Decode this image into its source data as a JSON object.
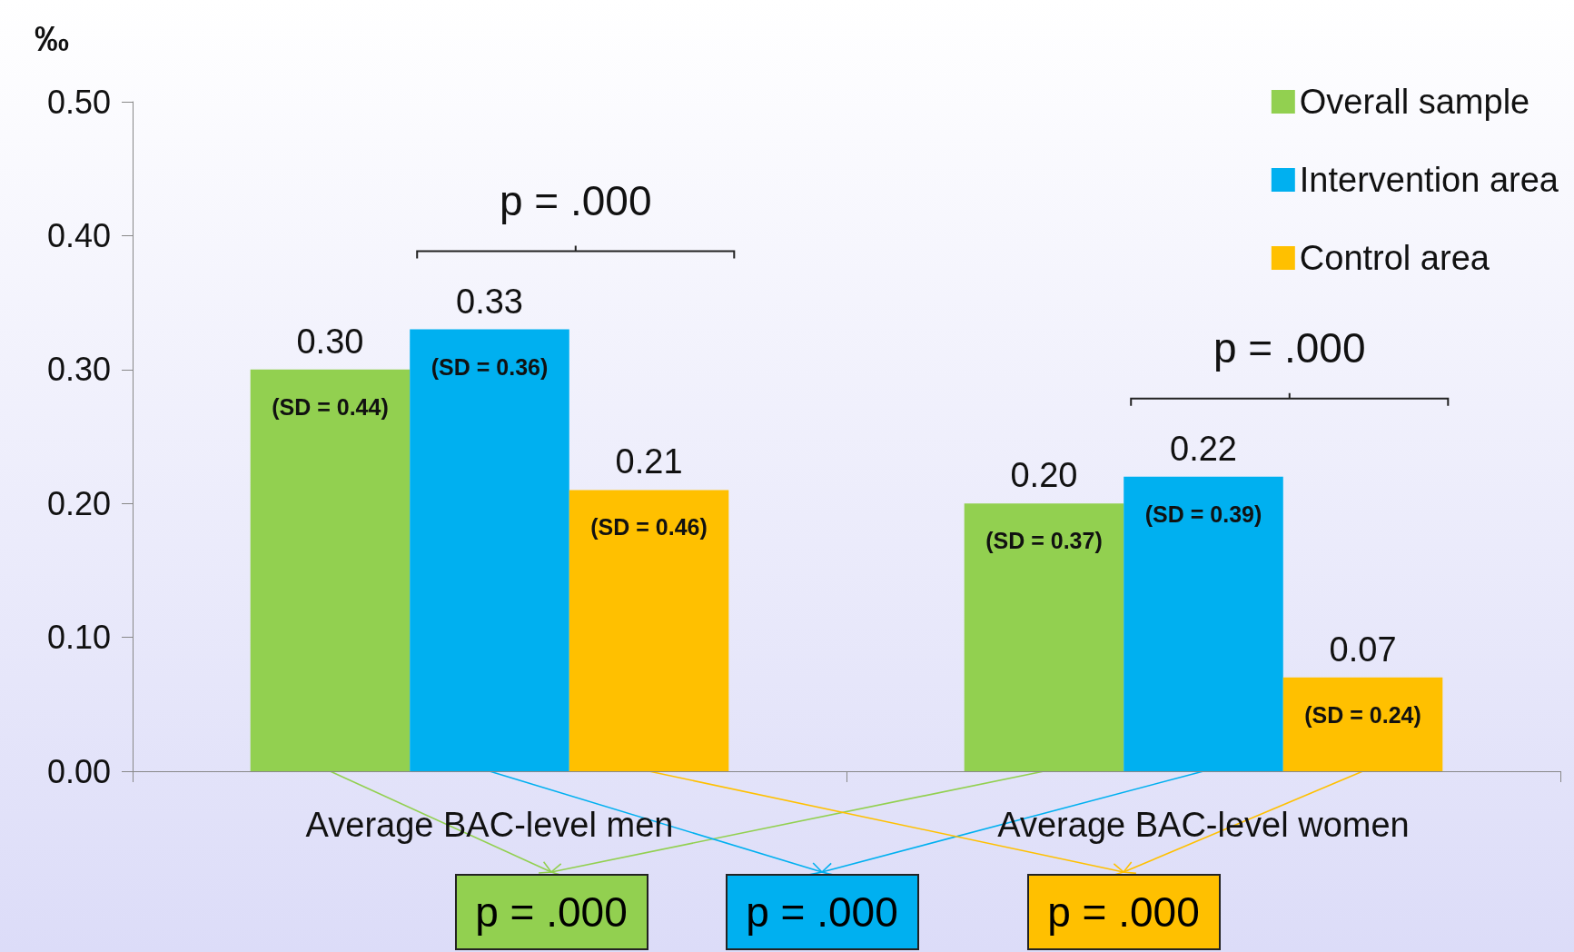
{
  "chart_data": {
    "type": "bar",
    "ylabel": "‰",
    "categories": [
      "Average BAC-level men",
      "Average BAC-level women"
    ],
    "series": [
      {
        "name": "Overall sample",
        "color": "#92d050",
        "values": [
          0.3,
          0.2
        ],
        "value_labels": [
          "0.30",
          "0.20"
        ]
      },
      {
        "name": "Intervention area",
        "color": "#00b0f0",
        "values": [
          0.33,
          0.22
        ],
        "value_labels": [
          "0.33",
          "0.22"
        ]
      },
      {
        "name": "Control area",
        "color": "#ffc000",
        "values": [
          0.21,
          0.07
        ],
        "value_labels": [
          "0.21",
          "0.07"
        ]
      }
    ],
    "ylim": [
      0,
      0.5
    ],
    "yticks": [
      {
        "value": 0,
        "label": "0.00"
      },
      {
        "value": 0.1,
        "label": "0.10"
      },
      {
        "value": 0.2,
        "label": "0.20"
      },
      {
        "value": 0.3,
        "label": "0.30"
      },
      {
        "value": 0.4,
        "label": "0.40"
      },
      {
        "value": 0.5,
        "label": "0.50"
      }
    ],
    "grid": false,
    "legend": "top right",
    "annotations": [
      "(SD = 0.44)",
      "(SD = 0.36)",
      "(SD = 0.46)",
      "(SD = 0.37)",
      "(SD = 0.39)",
      "(SD = 0.24)",
      "p = .000",
      "p = .000",
      "p = .000",
      "p = .000",
      "p = .000"
    ]
  }
}
